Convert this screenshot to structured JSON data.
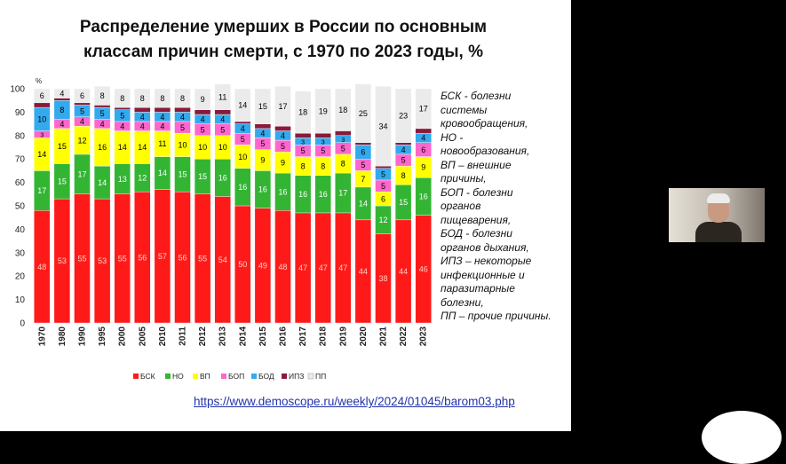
{
  "slide": {
    "title_line1": "Распределение умерших в России по основным",
    "title_line2": "классам причин смерти, с 1970 по 2023 годы, %",
    "source_link": "https://www.demoscope.ru/weekly/2024/01045/barom03.php",
    "notes": [
      "БСК - болезни",
      "системы",
      "кровообращения,",
      "НО -",
      "новообразования,",
      "ВП – внешние",
      "причины,",
      "БОП - болезни",
      "органов",
      "пищеварения,",
      "БОД - болезни",
      "органов дыхания,",
      "ИПЗ – некоторые",
      "инфекционные и",
      "паразитарные",
      "болезни,",
      "ПП – прочие причины."
    ]
  },
  "chart_data": {
    "type": "bar",
    "stacked": true,
    "ylabel": "%",
    "ylim": [
      0,
      100
    ],
    "yticks": [
      0,
      10,
      20,
      30,
      40,
      50,
      60,
      70,
      80,
      90,
      100
    ],
    "categories": [
      "1970",
      "1980",
      "1990",
      "1995",
      "2000",
      "2005",
      "2010",
      "2011",
      "2012",
      "2013",
      "2014",
      "2015",
      "2016",
      "2017",
      "2018",
      "2019",
      "2020",
      "2021",
      "2022",
      "2023"
    ],
    "series": [
      {
        "name": "БСК",
        "color": "#ff1a1a",
        "label_color": "#ffd0c0",
        "values": [
          48,
          53,
          55,
          53,
          55,
          56,
          57,
          56,
          55,
          54,
          50,
          49,
          48,
          47,
          47,
          47,
          44,
          38,
          44,
          46
        ]
      },
      {
        "name": "НО",
        "color": "#33b533",
        "label_color": "#ffffff",
        "values": [
          17,
          15,
          17,
          14,
          13,
          12,
          14,
          15,
          15,
          16,
          16,
          16,
          16,
          16,
          16,
          17,
          14,
          12,
          15,
          16
        ]
      },
      {
        "name": "ВП",
        "color": "#ffff00",
        "label_color": "#000000",
        "values": [
          14,
          15,
          12,
          16,
          14,
          14,
          11,
          10,
          10,
          10,
          10,
          9,
          9,
          8,
          8,
          8,
          7,
          6,
          8,
          9
        ]
      },
      {
        "name": "БОП",
        "color": "#ff66cc",
        "label_color": "#000000",
        "values": [
          3,
          4,
          4,
          4,
          4,
          4,
          4,
          5,
          5,
          5,
          5,
          5,
          5,
          5,
          5,
          5,
          5,
          5,
          5,
          6
        ]
      },
      {
        "name": "БОД",
        "color": "#33aaee",
        "label_color": "#000000",
        "values": [
          10,
          8,
          5,
          5,
          5,
          4,
          4,
          4,
          4,
          4,
          4,
          4,
          4,
          3,
          3,
          3,
          6,
          5,
          4,
          4
        ]
      },
      {
        "name": "ИПЗ",
        "color": "#8a1a3a",
        "label_color": "#ffffff",
        "values": [
          2,
          1,
          1,
          1,
          1,
          2,
          2,
          2,
          2,
          2,
          1,
          2,
          2,
          2,
          2,
          2,
          1,
          1,
          1,
          2
        ]
      },
      {
        "name": "ПП",
        "color": "#ebebeb",
        "label_color": "#000000",
        "values": [
          6,
          4,
          6,
          8,
          8,
          8,
          8,
          8,
          9,
          11,
          14,
          15,
          17,
          18,
          19,
          18,
          25,
          34,
          23,
          17
        ]
      }
    ],
    "legend_position": "bottom",
    "grid": false
  }
}
